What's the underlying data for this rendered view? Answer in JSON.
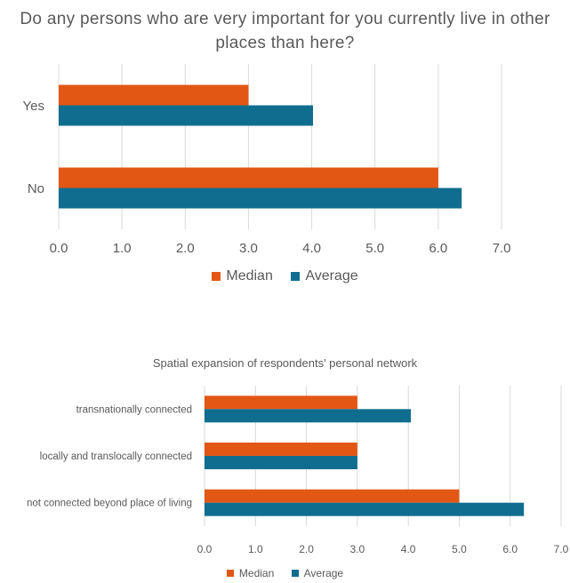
{
  "colors": {
    "median": "#E35714",
    "average": "#0F6E8F",
    "grid": "#D9D9D9",
    "text": "#595959"
  },
  "chart_data": [
    {
      "type": "bar",
      "orientation": "horizontal",
      "title": "Do any persons who are very important for you currently live in other places than here?",
      "categories": [
        "Yes",
        "No"
      ],
      "series": [
        {
          "name": "Median",
          "values": [
            3.0,
            6.0
          ]
        },
        {
          "name": "Average",
          "values": [
            4.02,
            6.37
          ]
        }
      ],
      "xlim": [
        0,
        7
      ],
      "xticks": [
        "0.0",
        "1.0",
        "2.0",
        "3.0",
        "4.0",
        "5.0",
        "6.0",
        "7.0"
      ],
      "grid": true,
      "legend": "bottom"
    },
    {
      "type": "bar",
      "orientation": "horizontal",
      "title": "Spatial expansion of respondents' personal network",
      "categories": [
        "transnationally connected",
        "locally and translocally connected",
        "not connected beyond place of living"
      ],
      "series": [
        {
          "name": "Median",
          "values": [
            3.0,
            3.0,
            5.0
          ]
        },
        {
          "name": "Average",
          "values": [
            4.05,
            3.0,
            6.27
          ]
        }
      ],
      "xlim": [
        0,
        7
      ],
      "xticks": [
        "0.0",
        "1.0",
        "2.0",
        "3.0",
        "4.0",
        "5.0",
        "6.0",
        "7.0"
      ],
      "grid": true,
      "legend": "bottom"
    }
  ]
}
